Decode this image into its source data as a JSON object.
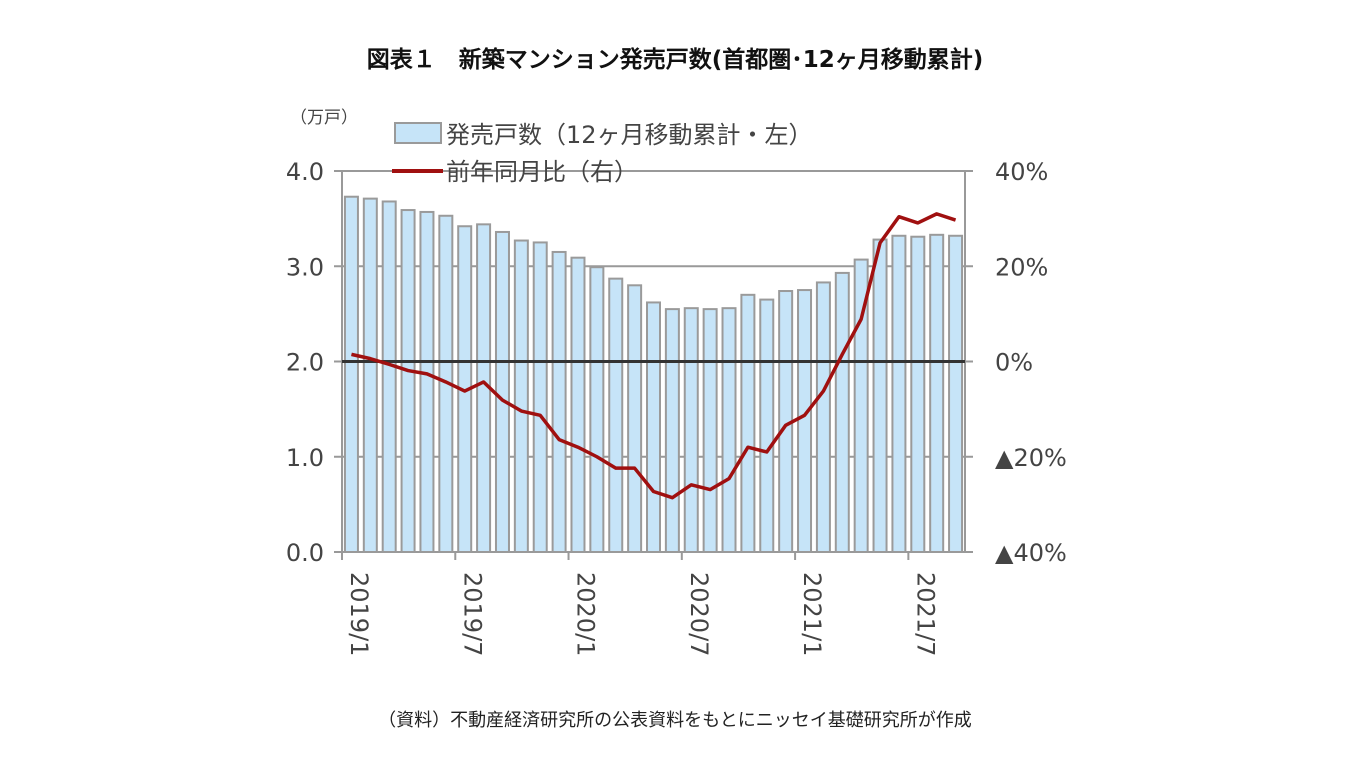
{
  "title": "図表１　新築マンション発売戸数(首都圏･12ヶ月移動累計)",
  "unit_label": "（万戸）",
  "source_note": "（資料）不動産経済研究所の公表資料をもとにニッセイ基礎研究所が作成",
  "colors": {
    "bar_fill": "#c6e4f8",
    "bar_stroke": "#9a9a9a",
    "line": "#a01010",
    "zero_line": "#333333"
  },
  "chart_data": {
    "type": "bar+line",
    "legend": [
      "発売戸数（12ヶ月移動累計・左）",
      "前年同月比（右）"
    ],
    "legend_placement": "top",
    "left_axis": {
      "ylim": [
        0,
        4
      ],
      "ticks": [
        "0.0",
        "1.0",
        "2.0",
        "3.0",
        "4.0"
      ]
    },
    "right_axis": {
      "ylim": [
        -40,
        40
      ],
      "ticks": [
        "▲40%",
        "▲20%",
        "0%",
        "20%",
        "40%"
      ]
    },
    "x_tick_labels": [
      "2019/1",
      "2019/7",
      "2020/1",
      "2020/7",
      "2021/1",
      "2021/7"
    ],
    "x": [
      "2019/1",
      "2019/2",
      "2019/3",
      "2019/4",
      "2019/5",
      "2019/6",
      "2019/7",
      "2019/8",
      "2019/9",
      "2019/10",
      "2019/11",
      "2019/12",
      "2020/1",
      "2020/2",
      "2020/3",
      "2020/4",
      "2020/5",
      "2020/6",
      "2020/7",
      "2020/8",
      "2020/9",
      "2020/10",
      "2020/11",
      "2020/12",
      "2021/1",
      "2021/2",
      "2021/3",
      "2021/4",
      "2021/5",
      "2021/6",
      "2021/7",
      "2021/8",
      "2021/9"
    ],
    "series": [
      {
        "name": "発売戸数（12ヶ月移動累計・左）",
        "type": "bar",
        "axis": "left",
        "values": [
          3.73,
          3.71,
          3.68,
          3.59,
          3.57,
          3.53,
          3.42,
          3.44,
          3.36,
          3.27,
          3.25,
          3.15,
          3.09,
          2.99,
          2.87,
          2.8,
          2.62,
          2.55,
          2.56,
          2.55,
          2.56,
          2.7,
          2.65,
          2.74,
          2.75,
          2.83,
          2.93,
          3.07,
          3.28,
          3.32,
          3.31,
          3.33,
          3.32
        ]
      },
      {
        "name": "前年同月比（右）",
        "type": "line",
        "axis": "right",
        "values": [
          1.5,
          0.6,
          -0.6,
          -1.9,
          -2.6,
          -4.3,
          -6.2,
          -4.3,
          -8.1,
          -10.4,
          -11.3,
          -16.4,
          -18,
          -20,
          -22.4,
          -22.4,
          -27.3,
          -28.6,
          -25.9,
          -26.9,
          -24.6,
          -18,
          -19,
          -13.4,
          -11.3,
          -6.2,
          1.5,
          8.9,
          24.9,
          30.4,
          29.1,
          31,
          29.7
        ]
      }
    ],
    "grid": true
  }
}
